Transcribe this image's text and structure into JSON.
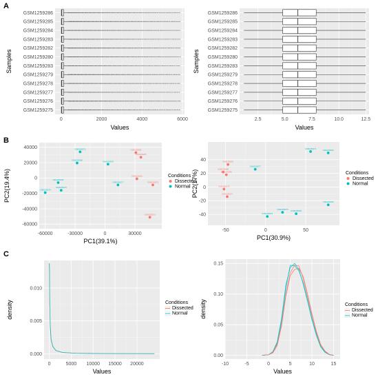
{
  "panel_labels": [
    "A",
    "B",
    "C"
  ],
  "colors": {
    "dissected": "#F8766D",
    "normal": "#00BFC4",
    "box_line": "#333333"
  },
  "chart_data": [
    {
      "id": "A-left",
      "type": "boxplot",
      "orientation": "horizontal",
      "xlabel": "Values",
      "ylabel": "Samples",
      "xlim": [
        -300,
        6100
      ],
      "xticks": [
        0,
        2000,
        4000,
        6000
      ],
      "categories": [
        "GSM1259275",
        "GSM1259276",
        "GSM1259277",
        "GSM1259278",
        "GSM1259279",
        "GSM1259283",
        "GSM1259280",
        "GSM1259282",
        "GSM1259283",
        "GSM1259284",
        "GSM1259285",
        "GSM1259286"
      ],
      "box": {
        "q1": 10,
        "median": 35,
        "q3": 120,
        "whisker_low": 0,
        "whisker_high": 350
      },
      "outliers_range": [
        350,
        5900
      ]
    },
    {
      "id": "A-right",
      "type": "boxplot",
      "orientation": "horizontal",
      "xlabel": "Values",
      "ylabel": "Samples",
      "xlim": [
        0.8,
        12.8
      ],
      "xticks": [
        2.5,
        5.0,
        7.5,
        10.0,
        12.5
      ],
      "xticklabels": [
        "2.5",
        "5.0",
        "7.5",
        "10.0",
        "12.5"
      ],
      "categories": [
        "GSM1259275",
        "GSM1259276",
        "GSM1259277",
        "GSM1259278",
        "GSM1259279",
        "GSM1259283",
        "GSM1259280",
        "GSM1259282",
        "GSM1259283",
        "GSM1259284",
        "GSM1259285",
        "GSM1259286"
      ],
      "box": {
        "q1": 4.8,
        "median": 6.2,
        "q3": 7.9,
        "whisker_low": 1.2,
        "whisker_high": 12.5
      }
    },
    {
      "id": "B-left",
      "type": "scatter",
      "xlabel": "PC1(39.1%)",
      "ylabel": "PC2(19.4%)",
      "xlim": [
        -66000,
        57000
      ],
      "ylim": [
        -66000,
        46000
      ],
      "xticks": [
        -60000,
        -30000,
        0,
        30000
      ],
      "yticks": [
        -60000,
        -40000,
        -20000,
        0,
        20000,
        40000
      ],
      "xticklabels": [
        "-60000",
        "-30000",
        "0",
        "30000"
      ],
      "yticklabels": [
        "-60000",
        "-40000",
        "-20000",
        "0",
        "20000",
        "40000"
      ],
      "legend": {
        "title": "Conditions",
        "entries": [
          "Dissected",
          "Normal"
        ]
      },
      "points": [
        {
          "x": -25000,
          "y": 34000,
          "group": "normal",
          "label": "GSM1259272"
        },
        {
          "x": -28000,
          "y": 19500,
          "group": "normal",
          "label": "GSM1259280"
        },
        {
          "x": 3000,
          "y": 18000,
          "group": "normal",
          "label": "GSM1259278"
        },
        {
          "x": -47000,
          "y": -6000,
          "group": "normal",
          "label": "GSM1259283"
        },
        {
          "x": -44000,
          "y": -16000,
          "group": "normal",
          "label": "GSM1259276"
        },
        {
          "x": -60000,
          "y": -19000,
          "group": "normal",
          "label": "GSM1259274"
        },
        {
          "x": 13000,
          "y": -9000,
          "group": "normal",
          "label": "GSM1259277"
        },
        {
          "x": 31000,
          "y": 33000,
          "group": "dissected",
          "label": "GSM1259283"
        },
        {
          "x": 36000,
          "y": 27000,
          "group": "dissected",
          "label": "GSM1259284"
        },
        {
          "x": 32000,
          "y": -1000,
          "group": "dissected",
          "label": "GSM1259281"
        },
        {
          "x": 48000,
          "y": -9000,
          "group": "dissected",
          "label": "GSM1259279"
        },
        {
          "x": 45000,
          "y": -51000,
          "group": "dissected",
          "label": "GSM1259275"
        }
      ]
    },
    {
      "id": "B-right",
      "type": "scatter",
      "xlabel": "PC1(30.9%)",
      "ylabel": "PC2(17%)",
      "xlim": [
        -72,
        92
      ],
      "ylim": [
        -56,
        66
      ],
      "xticks": [
        -50,
        0,
        50
      ],
      "yticks": [
        -40,
        -20,
        0,
        20,
        40
      ],
      "xticklabels": [
        "-50",
        "0",
        "50"
      ],
      "yticklabels": [
        "-40",
        "-20",
        "0",
        "20",
        "40"
      ],
      "legend": {
        "title": "Conditions",
        "entries": [
          "Dissected",
          "Normal"
        ]
      },
      "points": [
        {
          "x": 56,
          "y": 52,
          "group": "normal",
          "label": "GSM1259273"
        },
        {
          "x": 78,
          "y": 50,
          "group": "normal",
          "label": "GSM1259284"
        },
        {
          "x": -13,
          "y": 26,
          "group": "normal",
          "label": "GSM1259277"
        },
        {
          "x": 78,
          "y": -26,
          "group": "normal",
          "label": "GSM1259283"
        },
        {
          "x": 21,
          "y": -37,
          "group": "normal",
          "label": "GSM1259275"
        },
        {
          "x": 38,
          "y": -39,
          "group": "normal",
          "label": "GSM1259282"
        },
        {
          "x": 2,
          "y": -43,
          "group": "normal",
          "label": "GSM1259276"
        },
        {
          "x": -47,
          "y": 33,
          "group": "dissected",
          "label": "GSM1259281"
        },
        {
          "x": -53,
          "y": 22,
          "group": "dissected",
          "label": "GSM1259280"
        },
        {
          "x": -49,
          "y": 18,
          "group": "dissected",
          "label": "GSM1259286"
        },
        {
          "x": -52,
          "y": -3,
          "group": "dissected",
          "label": "GSM1259279"
        },
        {
          "x": -48,
          "y": -14,
          "group": "dissected",
          "label": "GSM1259274"
        }
      ]
    },
    {
      "id": "C-left",
      "type": "line",
      "xlabel": "Values",
      "ylabel": "density",
      "xlim": [
        -1200,
        25200
      ],
      "ylim": [
        -0.0008,
        0.0142
      ],
      "xticks": [
        0,
        5000,
        10000,
        15000,
        20000
      ],
      "yticks": [
        0.0,
        0.005,
        0.01
      ],
      "xticklabels": [
        "0",
        "5000",
        "10000",
        "15000",
        "20000"
      ],
      "yticklabels": [
        "0.000",
        "0.005",
        "0.010"
      ],
      "legend": {
        "title": "Conditions",
        "entries": [
          "Dissected",
          "Normal"
        ]
      },
      "series": [
        {
          "group": "dissected",
          "x": [
            0,
            40,
            100,
            200,
            400,
            800,
            1500,
            3000,
            6000,
            12000,
            24000
          ],
          "y": [
            0.0137,
            0.0125,
            0.0075,
            0.0042,
            0.0022,
            0.0011,
            0.0005,
            0.0002,
            8e-05,
            3e-05,
            1e-05
          ]
        },
        {
          "group": "normal",
          "x": [
            0,
            40,
            100,
            200,
            400,
            800,
            1500,
            3000,
            6000,
            12000,
            24000
          ],
          "y": [
            0.0138,
            0.0126,
            0.0076,
            0.0043,
            0.0022,
            0.0011,
            0.0005,
            0.0002,
            8e-05,
            3e-05,
            1e-05
          ]
        }
      ]
    },
    {
      "id": "C-right",
      "type": "line",
      "xlabel": "Values",
      "ylabel": "density",
      "xlim": [
        -10,
        16.5
      ],
      "ylim": [
        -0.006,
        0.157
      ],
      "xticks": [
        -10,
        -5,
        0,
        5,
        10,
        15
      ],
      "yticks": [
        0.0,
        0.05,
        0.1,
        0.15
      ],
      "xticklabels": [
        "-10",
        "-5",
        "0",
        "5",
        "10",
        "15"
      ],
      "yticklabels": [
        "0.00",
        "0.05",
        "0.10",
        "0.15"
      ],
      "legend": {
        "title": "Conditions",
        "entries": [
          "Dissected",
          "Normal"
        ]
      },
      "series": [
        {
          "group": "normal",
          "x": [
            -1.5,
            0,
            1,
            2,
            3,
            4,
            5,
            6,
            7,
            8,
            9,
            10,
            11,
            12,
            13,
            14,
            15
          ],
          "y": [
            0.0,
            0.001,
            0.005,
            0.02,
            0.055,
            0.11,
            0.147,
            0.146,
            0.138,
            0.118,
            0.09,
            0.06,
            0.035,
            0.015,
            0.006,
            0.001,
            0.0
          ]
        },
        {
          "group": "dissected",
          "x": [
            -1.5,
            0,
            1,
            2,
            3,
            4,
            5,
            6,
            7,
            8,
            9,
            10,
            11,
            12,
            13,
            14,
            15
          ],
          "y": [
            0.0,
            0.001,
            0.005,
            0.018,
            0.05,
            0.1,
            0.135,
            0.147,
            0.146,
            0.125,
            0.095,
            0.065,
            0.038,
            0.017,
            0.007,
            0.0015,
            0.0
          ]
        },
        {
          "group": "normal",
          "x": [
            -1.5,
            0,
            1,
            2,
            3,
            4,
            5,
            6,
            7,
            8,
            9,
            10,
            11,
            12,
            13,
            14,
            15
          ],
          "y": [
            0.0,
            0.001,
            0.006,
            0.022,
            0.06,
            0.115,
            0.143,
            0.15,
            0.14,
            0.116,
            0.088,
            0.058,
            0.033,
            0.014,
            0.005,
            0.001,
            0.0
          ]
        },
        {
          "group": "dissected",
          "x": [
            -1.5,
            0,
            1,
            2,
            3,
            4,
            5,
            6,
            7,
            8,
            9,
            10,
            11,
            12,
            13,
            14,
            15
          ],
          "y": [
            0.0,
            0.001,
            0.004,
            0.016,
            0.048,
            0.097,
            0.13,
            0.14,
            0.142,
            0.128,
            0.1,
            0.068,
            0.04,
            0.018,
            0.007,
            0.0015,
            0.0
          ]
        }
      ]
    }
  ]
}
